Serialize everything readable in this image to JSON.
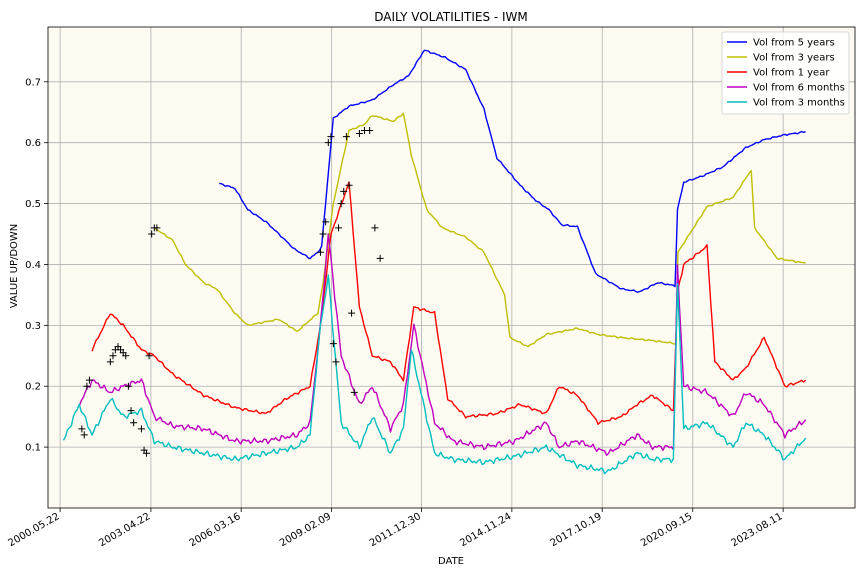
{
  "chart_data": {
    "type": "line",
    "title": "DAILY VOLATILITIES - IWM",
    "xlabel": "DATE",
    "ylabel": "VALUE UP/DOWN",
    "grid": true,
    "legend_position": "top-right",
    "background_color": "#fdfaf2",
    "xlim": [
      "2000-01-01",
      "2025-12-01"
    ],
    "ylim": [
      0.0,
      0.79
    ],
    "x_ticks": [
      "2000.05.22",
      "2003.04.22",
      "2006.03.16",
      "2009.02.09",
      "2011.12.30",
      "2014.11.24",
      "2017.10.19",
      "2020.09.15",
      "2023.08.11"
    ],
    "y_ticks": [
      "0.1",
      "0.2",
      "0.3",
      "0.4",
      "0.5",
      "0.6",
      "0.7"
    ],
    "series": [
      {
        "name": "Vol from 5 years",
        "color": "#0000ff",
        "x": [
          "2005-07-01",
          "2006-01-01",
          "2006-06-01",
          "2007-01-01",
          "2007-06-01",
          "2007-12-01",
          "2008-06-01",
          "2008-09-01",
          "2008-10-15",
          "2009-03-01",
          "2009-09-01",
          "2010-06-01",
          "2011-02-01",
          "2011-08-01",
          "2012-02-01",
          "2012-10-01",
          "2013-06-01",
          "2014-01-01",
          "2014-06-01",
          "2015-03-01",
          "2015-09-01",
          "2016-02-01",
          "2016-07-01",
          "2017-01-01",
          "2017-08-01",
          "2018-06-01",
          "2019-01-01",
          "2019-08-01",
          "2020-02-20",
          "2020-03-20",
          "2020-06-01",
          "2021-01-01",
          "2021-09-01",
          "2022-06-01",
          "2023-01-01",
          "2023-09-01",
          "2024-05-01"
        ],
        "values": [
          0.533,
          0.525,
          0.49,
          0.47,
          0.45,
          0.425,
          0.41,
          0.42,
          0.43,
          0.64,
          0.66,
          0.67,
          0.695,
          0.71,
          0.752,
          0.74,
          0.72,
          0.655,
          0.575,
          0.53,
          0.505,
          0.49,
          0.465,
          0.462,
          0.385,
          0.36,
          0.355,
          0.37,
          0.365,
          0.49,
          0.535,
          0.545,
          0.56,
          0.592,
          0.605,
          0.613,
          0.618
        ]
      },
      {
        "name": "Vol from 3 years",
        "color": "#bfbf00",
        "x": [
          "2003-06-01",
          "2004-01-01",
          "2004-06-01",
          "2005-01-01",
          "2005-06-01",
          "2006-01-01",
          "2006-06-01",
          "2007-06-01",
          "2008-01-01",
          "2008-09-01",
          "2008-11-01",
          "2009-03-01",
          "2009-09-01",
          "2010-03-01",
          "2010-06-01",
          "2011-02-01",
          "2011-06-01",
          "2011-09-01",
          "2012-03-01",
          "2012-09-01",
          "2013-06-01",
          "2014-01-01",
          "2014-09-01",
          "2014-11-01",
          "2015-06-01",
          "2016-01-01",
          "2017-01-01",
          "2017-09-01",
          "2018-06-01",
          "2019-06-01",
          "2020-03-01",
          "2020-03-25",
          "2021-03-01",
          "2022-01-01",
          "2022-08-01",
          "2022-09-10",
          "2023-06-01",
          "2024-05-01"
        ],
        "values": [
          0.46,
          0.44,
          0.4,
          0.37,
          0.36,
          0.32,
          0.3,
          0.31,
          0.29,
          0.32,
          0.37,
          0.5,
          0.62,
          0.63,
          0.645,
          0.635,
          0.648,
          0.58,
          0.49,
          0.46,
          0.445,
          0.42,
          0.35,
          0.28,
          0.265,
          0.285,
          0.295,
          0.285,
          0.28,
          0.275,
          0.27,
          0.42,
          0.495,
          0.51,
          0.555,
          0.46,
          0.41,
          0.402
        ]
      },
      {
        "name": "Vol from 1 year",
        "color": "#ff0000",
        "x": [
          "2001-06-01",
          "2002-01-01",
          "2002-06-01",
          "2003-01-01",
          "2003-06-01",
          "2004-01-01",
          "2005-01-01",
          "2006-01-01",
          "2007-01-01",
          "2007-09-01",
          "2008-06-01",
          "2008-10-01",
          "2009-02-01",
          "2009-09-01",
          "2010-01-01",
          "2010-06-01",
          "2011-01-01",
          "2011-06-01",
          "2011-10-01",
          "2012-06-01",
          "2012-11-01",
          "2013-06-01",
          "2014-06-01",
          "2015-03-01",
          "2016-01-01",
          "2016-06-01",
          "2017-01-01",
          "2017-09-01",
          "2018-06-01",
          "2018-12-01",
          "2019-06-01",
          "2020-02-01",
          "2020-03-20",
          "2020-06-01",
          "2021-03-01",
          "2021-06-01",
          "2022-01-01",
          "2022-06-01",
          "2023-01-01",
          "2023-09-01",
          "2024-05-01"
        ],
        "values": [
          0.26,
          0.32,
          0.3,
          0.26,
          0.25,
          0.22,
          0.185,
          0.165,
          0.155,
          0.18,
          0.2,
          0.3,
          0.45,
          0.535,
          0.33,
          0.25,
          0.24,
          0.21,
          0.33,
          0.32,
          0.18,
          0.15,
          0.155,
          0.17,
          0.155,
          0.2,
          0.185,
          0.14,
          0.15,
          0.17,
          0.185,
          0.16,
          0.355,
          0.4,
          0.43,
          0.24,
          0.21,
          0.23,
          0.28,
          0.2,
          0.21
        ]
      },
      {
        "name": "Vol from 6 months",
        "color": "#bf00bf",
        "x": [
          "2001-01-01",
          "2001-06-01",
          "2002-01-01",
          "2002-06-01",
          "2003-01-01",
          "2003-06-01",
          "2004-01-01",
          "2005-01-01",
          "2006-01-01",
          "2007-01-01",
          "2008-01-01",
          "2008-06-01",
          "2008-10-01",
          "2009-01-01",
          "2009-06-01",
          "2010-01-01",
          "2010-06-01",
          "2011-01-01",
          "2011-06-01",
          "2011-10-01",
          "2012-06-01",
          "2013-01-01",
          "2014-01-01",
          "2015-01-01",
          "2016-01-01",
          "2016-06-01",
          "2017-01-01",
          "2018-01-01",
          "2018-12-01",
          "2019-06-01",
          "2020-02-01",
          "2020-03-20",
          "2020-06-01",
          "2021-03-01",
          "2022-01-01",
          "2022-06-01",
          "2023-01-01",
          "2023-09-01",
          "2024-05-01"
        ],
        "values": [
          0.17,
          0.21,
          0.19,
          0.2,
          0.21,
          0.15,
          0.135,
          0.13,
          0.11,
          0.11,
          0.12,
          0.14,
          0.3,
          0.45,
          0.25,
          0.17,
          0.2,
          0.13,
          0.17,
          0.3,
          0.14,
          0.11,
          0.1,
          0.11,
          0.14,
          0.1,
          0.11,
          0.09,
          0.12,
          0.1,
          0.1,
          0.395,
          0.2,
          0.19,
          0.15,
          0.19,
          0.17,
          0.12,
          0.145
        ]
      },
      {
        "name": "Vol from 3 months",
        "color": "#00bfbf",
        "x": [
          "2000-07-01",
          "2001-01-01",
          "2001-06-01",
          "2002-01-01",
          "2002-06-01",
          "2003-01-01",
          "2003-06-01",
          "2004-01-01",
          "2005-01-01",
          "2006-01-01",
          "2007-01-01",
          "2008-01-01",
          "2008-06-01",
          "2008-10-01",
          "2009-01-01",
          "2009-06-01",
          "2010-01-01",
          "2010-06-01",
          "2011-01-01",
          "2011-06-01",
          "2011-09-01",
          "2012-06-01",
          "2013-01-01",
          "2014-01-01",
          "2015-01-01",
          "2016-01-01",
          "2017-01-01",
          "2018-01-01",
          "2018-12-01",
          "2019-06-01",
          "2020-02-01",
          "2020-03-20",
          "2020-06-01",
          "2021-03-01",
          "2022-01-01",
          "2022-06-01",
          "2023-01-01",
          "2023-09-01",
          "2024-05-01"
        ],
        "values": [
          0.11,
          0.17,
          0.12,
          0.18,
          0.15,
          0.16,
          0.11,
          0.1,
          0.09,
          0.08,
          0.09,
          0.1,
          0.12,
          0.3,
          0.38,
          0.14,
          0.1,
          0.15,
          0.09,
          0.13,
          0.26,
          0.09,
          0.08,
          0.075,
          0.085,
          0.1,
          0.07,
          0.06,
          0.09,
          0.08,
          0.08,
          0.37,
          0.13,
          0.14,
          0.1,
          0.14,
          0.12,
          0.08,
          0.115
        ]
      }
    ],
    "markers": {
      "symbol": "+",
      "color": "#000000",
      "x": [
        "2001-02-01",
        "2001-03-01",
        "2001-04-01",
        "2001-05-01",
        "2002-01-01",
        "2002-02-01",
        "2002-03-01",
        "2002-04-01",
        "2002-05-01",
        "2002-06-01",
        "2002-07-01",
        "2002-08-01",
        "2002-09-01",
        "2002-10-01",
        "2003-01-01",
        "2003-02-01",
        "2003-03-01",
        "2003-04-01",
        "2003-05-01",
        "2003-06-01",
        "2003-07-01",
        "2008-10-01",
        "2008-11-01",
        "2008-12-01",
        "2009-01-01",
        "2009-02-01",
        "2009-03-01",
        "2009-04-01",
        "2009-05-01",
        "2009-06-01",
        "2009-07-01",
        "2009-08-01",
        "2009-09-01",
        "2009-10-01",
        "2009-11-01",
        "2010-01-01",
        "2010-03-01",
        "2010-05-01",
        "2010-07-01",
        "2010-09-01"
      ],
      "values": [
        0.13,
        0.12,
        0.2,
        0.21,
        0.24,
        0.25,
        0.26,
        0.265,
        0.26,
        0.255,
        0.25,
        0.2,
        0.16,
        0.14,
        0.13,
        0.095,
        0.09,
        0.25,
        0.45,
        0.46,
        0.46,
        0.42,
        0.45,
        0.47,
        0.6,
        0.61,
        0.27,
        0.24,
        0.46,
        0.5,
        0.52,
        0.61,
        0.53,
        0.32,
        0.19,
        0.615,
        0.62,
        0.62,
        0.46,
        0.41
      ]
    }
  }
}
